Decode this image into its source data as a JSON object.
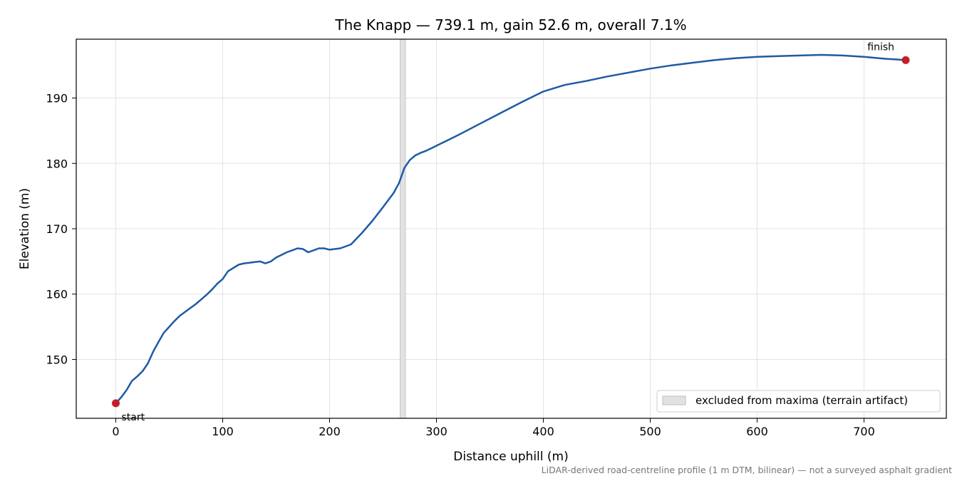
{
  "chart_data": {
    "type": "line",
    "title": "The Knapp — 739.1 m, gain 52.6 m, overall 7.1%",
    "xlabel": "Distance uphill (m)",
    "ylabel": "Elevation (m)",
    "xlim": [
      -37,
      777
    ],
    "ylim": [
      141,
      199
    ],
    "xticks": [
      0,
      100,
      200,
      300,
      400,
      500,
      600,
      700
    ],
    "yticks": [
      150,
      160,
      170,
      180,
      190
    ],
    "grid": true,
    "series": [
      {
        "color": "#1f5aa6",
        "x": [
          0,
          5,
          10,
          15,
          20,
          25,
          30,
          35,
          40,
          45,
          50,
          55,
          60,
          65,
          70,
          75,
          80,
          85,
          90,
          95,
          100,
          105,
          110,
          115,
          120,
          125,
          130,
          135,
          140,
          145,
          150,
          155,
          160,
          165,
          170,
          175,
          180,
          185,
          190,
          195,
          200,
          210,
          220,
          230,
          240,
          250,
          260,
          265,
          270,
          275,
          280,
          285,
          290,
          295,
          300,
          320,
          340,
          360,
          380,
          400,
          420,
          440,
          460,
          480,
          500,
          520,
          540,
          560,
          580,
          600,
          620,
          640,
          660,
          680,
          700,
          720,
          730,
          739
        ],
        "y": [
          143.3,
          144.2,
          145.3,
          146.7,
          147.4,
          148.2,
          149.4,
          151.2,
          152.7,
          154.1,
          155.0,
          155.9,
          156.7,
          157.3,
          157.9,
          158.5,
          159.2,
          159.9,
          160.7,
          161.6,
          162.3,
          163.5,
          164.0,
          164.5,
          164.7,
          164.8,
          164.9,
          165.0,
          164.7,
          165.0,
          165.6,
          166.0,
          166.4,
          166.7,
          167.0,
          166.9,
          166.4,
          166.7,
          167.0,
          167.0,
          166.8,
          167.0,
          167.6,
          169.3,
          171.2,
          173.3,
          175.5,
          177.0,
          179.3,
          180.5,
          181.2,
          181.6,
          181.9,
          182.3,
          182.7,
          184.3,
          186.0,
          187.7,
          189.4,
          191.0,
          192.0,
          192.6,
          193.3,
          193.9,
          194.5,
          195.0,
          195.4,
          195.8,
          196.1,
          196.3,
          196.4,
          196.5,
          196.6,
          196.5,
          196.3,
          196.0,
          195.9,
          195.8
        ]
      }
    ],
    "excluded_band": [
      266,
      271
    ],
    "markers": [
      {
        "x": 0,
        "y": 143.3,
        "label": "start"
      },
      {
        "x": 739,
        "y": 195.8,
        "label": "finish"
      }
    ],
    "legend": {
      "label": "excluded from maxima (terrain artifact)",
      "placement": "lower-right"
    },
    "footnote": "LiDAR-derived road-centreline profile (1 m DTM, bilinear) — not a surveyed asphalt gradient",
    "colors": {
      "line": "#1f5aa6",
      "marker": "#c41e2a",
      "band": "#bdbdbd",
      "grid": "#e3e3e3"
    }
  }
}
